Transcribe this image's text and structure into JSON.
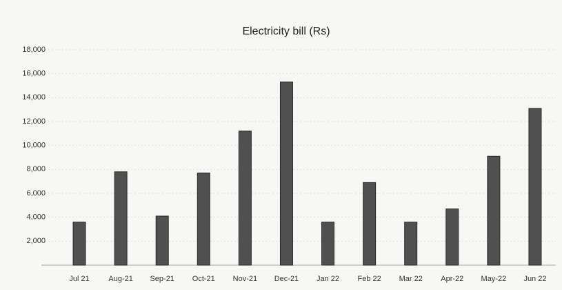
{
  "chart_data": {
    "type": "bar",
    "title": "Electricity bill (Rs)",
    "categories": [
      "Jul 21",
      "Aug-21",
      "Sep-21",
      "Oct-21",
      "Nov-21",
      "Dec-21",
      "Jan 22",
      "Feb 22",
      "Mar 22",
      "Apr-22",
      "May-22",
      "Jun 22"
    ],
    "values": [
      3600,
      7800,
      4100,
      7700,
      11200,
      15300,
      3600,
      6900,
      3600,
      4700,
      9100,
      13100
    ],
    "color": "#505050",
    "ylim": [
      0,
      18000
    ],
    "yticks": [
      {
        "value": 2000,
        "label": "2,000"
      },
      {
        "value": 4000,
        "label": "4,000"
      },
      {
        "value": 6000,
        "label": "6,000"
      },
      {
        "value": 8000,
        "label": "8,000"
      },
      {
        "value": 10000,
        "label": "10,000"
      },
      {
        "value": 12000,
        "label": "12,000"
      },
      {
        "value": 14000,
        "label": "14,000"
      },
      {
        "value": 16000,
        "label": "16,000"
      },
      {
        "value": 18000,
        "label": "18,000"
      }
    ],
    "grid": true
  }
}
